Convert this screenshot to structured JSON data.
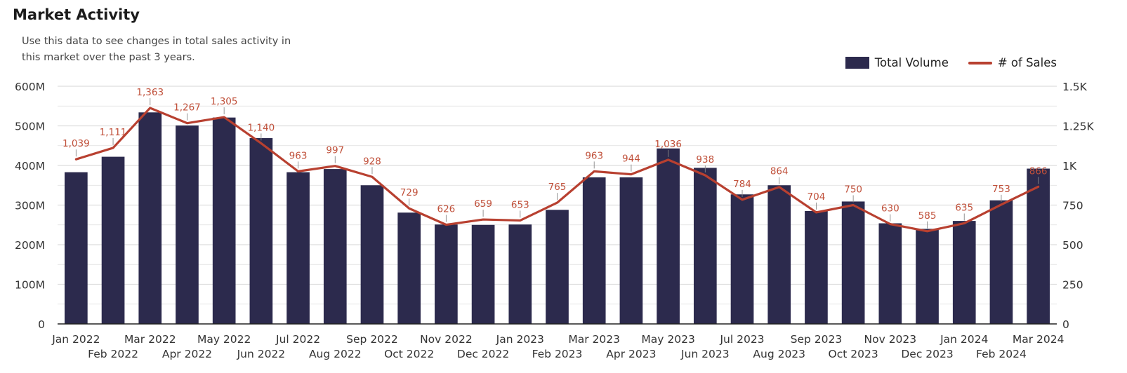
{
  "title": "Market Activity",
  "subtitle": "Use this data to see changes in total sales activity in this market over the past 3 years.",
  "legend": {
    "bar_label": "Total Volume",
    "line_label": "# of Sales"
  },
  "colors": {
    "bar": "#2c2a4d",
    "line": "#b84030",
    "label": "#c0503a",
    "grid": "#dddddd",
    "axis_text": "#333333"
  },
  "chart_data": {
    "type": "bar",
    "categories": [
      "Jan 2022",
      "Feb 2022",
      "Mar 2022",
      "Apr 2022",
      "May 2022",
      "Jun 2022",
      "Jul 2022",
      "Aug 2022",
      "Sep 2022",
      "Oct 2022",
      "Nov 2022",
      "Dec 2022",
      "Jan 2023",
      "Feb 2023",
      "Mar 2023",
      "Apr 2023",
      "May 2023",
      "Jun 2023",
      "Jul 2023",
      "Aug 2023",
      "Sep 2023",
      "Oct 2023",
      "Nov 2023",
      "Dec 2023",
      "Jan 2024",
      "Feb 2024",
      "Mar 2024"
    ],
    "series": [
      {
        "name": "Total Volume",
        "type": "bar",
        "axis": "left",
        "values": [
          383,
          422,
          534,
          501,
          521,
          469,
          383,
          391,
          350,
          281,
          251,
          250,
          251,
          288,
          370,
          370,
          443,
          394,
          327,
          350,
          285,
          309,
          254,
          240,
          260,
          312,
          392
        ]
      },
      {
        "name": "# of Sales",
        "type": "line",
        "axis": "right",
        "values": [
          1039,
          1111,
          1363,
          1267,
          1305,
          1140,
          963,
          997,
          928,
          729,
          626,
          659,
          653,
          765,
          963,
          944,
          1036,
          938,
          784,
          864,
          704,
          750,
          630,
          585,
          635,
          753,
          866
        ],
        "labels": [
          "1,039",
          "1,111",
          "1,363",
          "1,267",
          "1,305",
          "1,140",
          "963",
          "997",
          "928",
          "729",
          "626",
          "659",
          "653",
          "765",
          "963",
          "944",
          "1,036",
          "938",
          "784",
          "864",
          "704",
          "750",
          "630",
          "585",
          "635",
          "753",
          "866"
        ]
      }
    ],
    "y_left": {
      "ylim": [
        0,
        600
      ],
      "ticks": [
        0,
        100,
        200,
        300,
        400,
        500,
        600
      ],
      "tick_labels": [
        "0",
        "100M",
        "200M",
        "300M",
        "400M",
        "500M",
        "600M"
      ]
    },
    "y_right": {
      "ylim": [
        0,
        1500
      ],
      "ticks": [
        0,
        250,
        500,
        750,
        1000,
        1250,
        1500
      ],
      "tick_labels": [
        "0",
        "250",
        "500",
        "750",
        "1K",
        "1.25K",
        "1.5K"
      ]
    },
    "grid": true,
    "legend_position": "top-right"
  }
}
